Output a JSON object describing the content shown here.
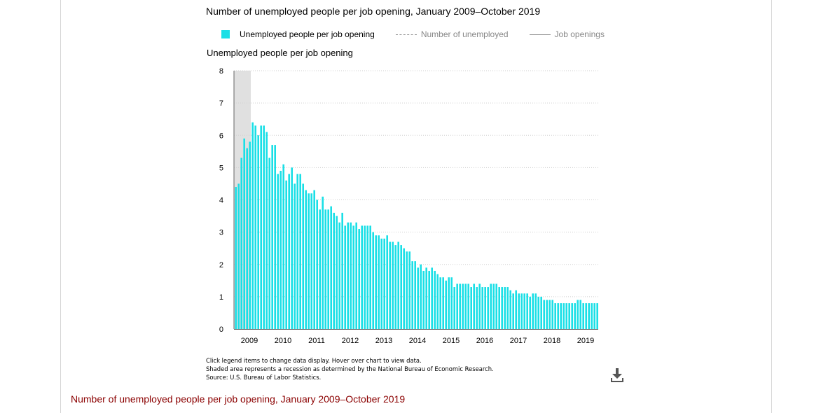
{
  "colors": {
    "bar": "#1adfe6",
    "recession": "#e0e0e0",
    "grid": "#cfcfcf",
    "axis": "#666666",
    "heading": "#8b0000"
  },
  "legend": [
    {
      "label": "Unemployed people per job opening",
      "style": "swatch",
      "active": true
    },
    {
      "label": "Number of unemployed",
      "style": "dashed-line",
      "active": false
    },
    {
      "label": "Job openings",
      "style": "solid-line",
      "active": false
    }
  ],
  "notes": [
    "Click legend items to change data display. Hover over chart to view data.",
    "Shaded area represents a recession as determined by the National Bureau of Economic Research.",
    "Source: U.S. Bureau of Labor Statistics."
  ],
  "download_icon": "download-icon",
  "below_heading": "Number of unemployed people per job opening, January 2009–October 2019",
  "chart_data": {
    "type": "bar",
    "title": "Number of unemployed people per job opening, January 2009–October 2019",
    "ylabel": "Unemployed people per job opening",
    "xlabel": "",
    "ylim": [
      0,
      8
    ],
    "yticks": [
      0,
      1,
      2,
      3,
      4,
      5,
      6,
      7,
      8
    ],
    "xtick_labels": [
      "2009",
      "2010",
      "2011",
      "2012",
      "2013",
      "2014",
      "2015",
      "2016",
      "2017",
      "2018",
      "2019"
    ],
    "grid": true,
    "legend_position": "top",
    "recession": {
      "start": "2009-01",
      "end": "2009-06"
    },
    "x_start": "2009-01",
    "x_end": "2019-10",
    "series": [
      {
        "name": "Unemployed people per job opening",
        "values": [
          4.4,
          4.5,
          5.3,
          5.9,
          5.6,
          5.8,
          6.4,
          6.3,
          6.0,
          6.3,
          6.3,
          6.1,
          5.3,
          5.7,
          5.7,
          4.8,
          4.9,
          5.1,
          4.6,
          4.8,
          5.0,
          4.5,
          4.8,
          4.8,
          4.5,
          4.3,
          4.2,
          4.2,
          4.3,
          4.0,
          3.7,
          4.1,
          3.7,
          3.7,
          3.8,
          3.6,
          3.5,
          3.3,
          3.6,
          3.2,
          3.3,
          3.3,
          3.2,
          3.3,
          3.1,
          3.2,
          3.2,
          3.2,
          3.2,
          3.0,
          2.9,
          2.9,
          2.8,
          2.8,
          2.9,
          2.7,
          2.7,
          2.6,
          2.7,
          2.6,
          2.5,
          2.4,
          2.4,
          2.1,
          2.1,
          1.9,
          2.0,
          1.8,
          1.9,
          1.8,
          1.9,
          1.8,
          1.7,
          1.6,
          1.6,
          1.5,
          1.6,
          1.6,
          1.3,
          1.4,
          1.4,
          1.4,
          1.4,
          1.4,
          1.3,
          1.4,
          1.3,
          1.4,
          1.3,
          1.3,
          1.3,
          1.4,
          1.4,
          1.4,
          1.3,
          1.3,
          1.3,
          1.3,
          1.2,
          1.1,
          1.2,
          1.1,
          1.1,
          1.1,
          1.1,
          1.0,
          1.1,
          1.1,
          1.0,
          1.0,
          0.9,
          0.9,
          0.9,
          0.9,
          0.8,
          0.8,
          0.8,
          0.8,
          0.8,
          0.8,
          0.8,
          0.8,
          0.9,
          0.9,
          0.8,
          0.8,
          0.8,
          0.8,
          0.8,
          0.8
        ]
      }
    ]
  }
}
